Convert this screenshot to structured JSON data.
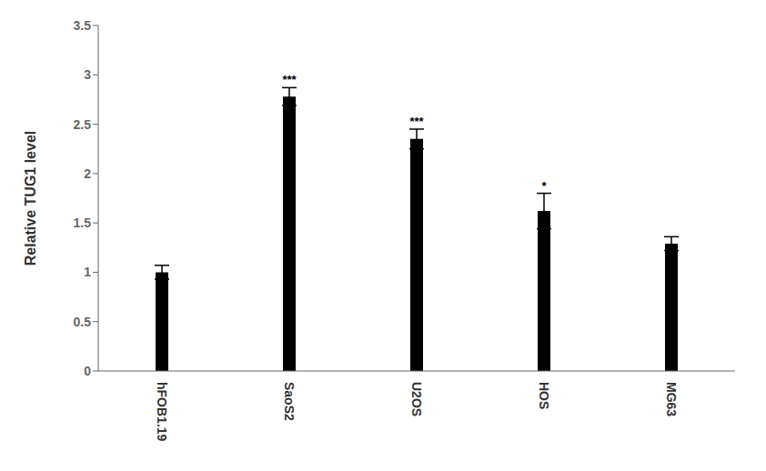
{
  "chart_data": {
    "type": "bar",
    "categories": [
      "hFOB1.19",
      "SaoS2",
      "U2OS",
      "HOS",
      "MG63"
    ],
    "values": [
      1.0,
      2.78,
      2.35,
      1.62,
      1.29
    ],
    "errors": [
      0.07,
      0.09,
      0.1,
      0.18,
      0.07
    ],
    "significance": [
      null,
      "***",
      "***",
      "*",
      null
    ],
    "color": "#000000",
    "ylabel": "Relative TUG1 level",
    "ylim": [
      0,
      3.5
    ],
    "yticks": [
      0,
      0.5,
      1,
      1.5,
      2,
      2.5,
      3,
      3.5
    ],
    "grid": false
  }
}
